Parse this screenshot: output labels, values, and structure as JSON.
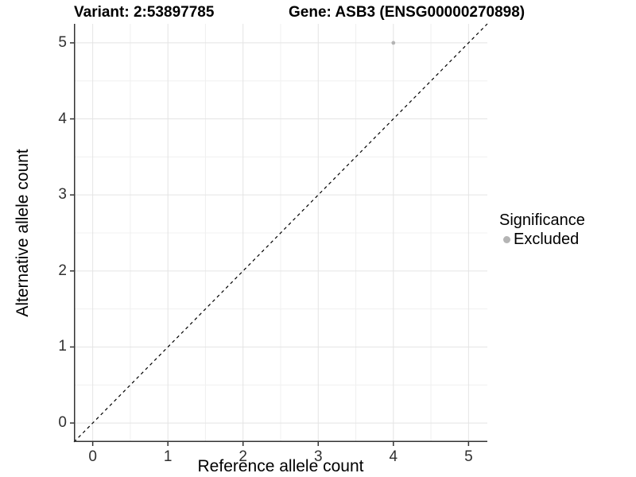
{
  "plot": {
    "title_variant": "Variant: 2:53897785",
    "title_gene": "Gene: ASB3 (ENSG00000270898)"
  },
  "chart_data": {
    "type": "scatter",
    "title": "Variant: 2:53897785    Gene: ASB3 (ENSG00000270898)",
    "xlabel": "Reference allele count",
    "ylabel": "Alternative allele count",
    "xlim": [
      -0.25,
      5.25
    ],
    "ylim": [
      -0.25,
      5.25
    ],
    "x_ticks": [
      0,
      1,
      2,
      3,
      4,
      5
    ],
    "y_ticks": [
      0,
      1,
      2,
      3,
      4,
      5
    ],
    "x_minor": [
      0.5,
      1.5,
      2.5,
      3.5,
      4.5
    ],
    "y_minor": [
      0.5,
      1.5,
      2.5,
      3.5,
      4.5
    ],
    "grid": "major+minor, white panel",
    "legend": {
      "title": "Significance",
      "position": "right",
      "entries": [
        {
          "label": "Excluded",
          "color": "#b4b4b4"
        }
      ]
    },
    "series": [
      {
        "name": "Excluded",
        "color": "#b4b4b4",
        "marker_radius": 2.4,
        "points": [
          {
            "x": 4,
            "y": 5
          }
        ]
      }
    ],
    "reference_line": {
      "kind": "identity y=x",
      "style": "dashed",
      "color": "#000000",
      "dash": [
        4,
        4
      ]
    },
    "colors": {
      "grid_major": "#e4e4e4",
      "grid_minor": "#f0f0f0",
      "axis": "#333333",
      "tick_text": "#303030",
      "background": "#ffffff"
    }
  }
}
